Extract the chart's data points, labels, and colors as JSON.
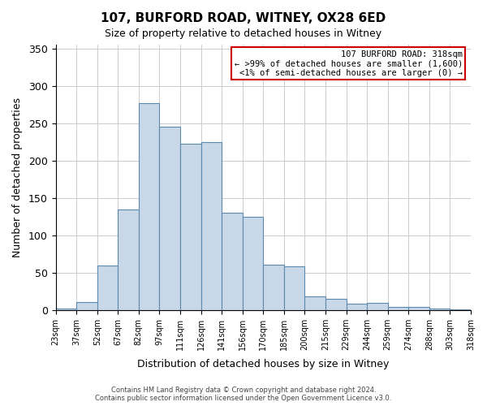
{
  "title": "107, BURFORD ROAD, WITNEY, OX28 6ED",
  "subtitle": "Size of property relative to detached houses in Witney",
  "xlabel": "Distribution of detached houses by size in Witney",
  "ylabel": "Number of detached properties",
  "bar_labels": [
    "23sqm",
    "37sqm",
    "52sqm",
    "67sqm",
    "82sqm",
    "97sqm",
    "111sqm",
    "126sqm",
    "141sqm",
    "156sqm",
    "170sqm",
    "185sqm",
    "200sqm",
    "215sqm",
    "229sqm",
    "244sqm",
    "259sqm",
    "274sqm",
    "288sqm",
    "303sqm",
    "318sqm"
  ],
  "bar_values": [
    2,
    11,
    59,
    135,
    277,
    245,
    222,
    225,
    130,
    125,
    61,
    58,
    18,
    15,
    9,
    10,
    4,
    4,
    2,
    1
  ],
  "bar_color": "#c8d8e8",
  "bar_edge_color": "#5b8ab0",
  "ylim": [
    0,
    355
  ],
  "yticks": [
    0,
    50,
    100,
    150,
    200,
    250,
    300,
    350
  ],
  "legend_title": "107 BURFORD ROAD: 318sqm",
  "legend_line1": "← >99% of detached houses are smaller (1,600)",
  "legend_line2": "<1% of semi-detached houses are larger (0) →",
  "legend_box_color": "#ffffff",
  "legend_box_edge_color": "#cc0000",
  "footer_line1": "Contains HM Land Registry data © Crown copyright and database right 2024.",
  "footer_line2": "Contains public sector information licensed under the Open Government Licence v3.0.",
  "background_color": "#ffffff",
  "grid_color": "#cccccc"
}
